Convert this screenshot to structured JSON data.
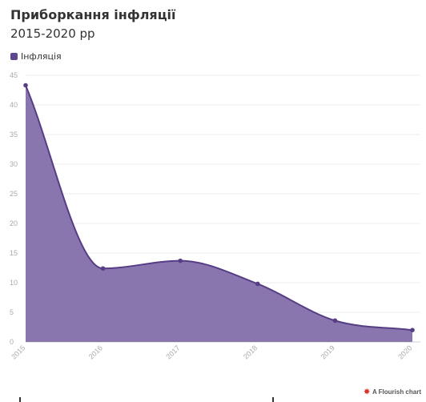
{
  "title": "Приборкання інфляції",
  "subtitle": "2015-2020 рр",
  "legend": {
    "label": "Інфляція"
  },
  "credit": {
    "icon": "flourish-logo-icon",
    "text": "A Flourish chart"
  },
  "colors": {
    "area_fill": "#8a76ae",
    "line": "#563d85",
    "swatch": "#5f4691",
    "grid": "#ececec"
  },
  "chart_data": {
    "type": "area",
    "title": "Приборкання інфляції",
    "subtitle": "2015-2020 рр",
    "x": [
      "2015",
      "2016",
      "2017",
      "2018",
      "2019",
      "2020"
    ],
    "series": [
      {
        "name": "Інфляція",
        "values": [
          43.3,
          12.4,
          13.7,
          9.8,
          3.6,
          2.0
        ]
      }
    ],
    "ylim": [
      0,
      45
    ],
    "yticks": [
      0,
      5,
      10,
      15,
      20,
      25,
      30,
      35,
      40,
      45
    ],
    "xlabel": "",
    "ylabel": "",
    "grid": true,
    "legend": "top-left"
  }
}
